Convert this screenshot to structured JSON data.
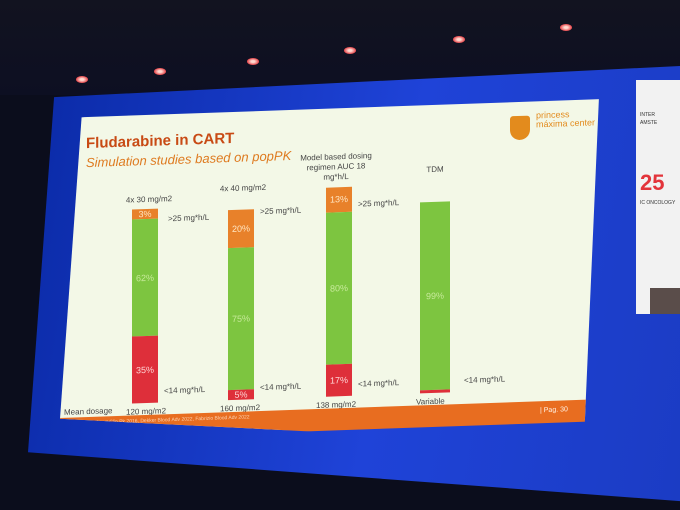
{
  "slide": {
    "title": "Fludarabine in CART",
    "subtitle": "Simulation studies based on popPK",
    "brand": "princess máxima center",
    "mean_dosage_label": "Mean dosage",
    "footer_refs": "Langenhorst Clin Pk 2016, Dekker Blood Adv 2022, Fabrizio Blood Adv 2022",
    "page": "| Pag. 30"
  },
  "side_panel": {
    "number": "25",
    "line1": "INTER",
    "line2": "AMSTE",
    "line3": "IC ONCOLOGY"
  },
  "chart_data": {
    "type": "bar",
    "stacked": true,
    "categories": [
      "4x 30 mg/m2",
      "4x 40 mg/m2",
      "Model based dosing regimen AUC 18 mg*h/L",
      "TDM"
    ],
    "mean_dosage": [
      "120 mg/m2",
      "160 mg/m2",
      "138 mg/m2",
      "Variable"
    ],
    "series": [
      {
        "name": ">25 mg*h/L",
        "color": "#e8812a",
        "values": [
          3,
          20,
          13,
          null
        ]
      },
      {
        "name": "",
        "color": "#7dc540",
        "values": [
          62,
          75,
          80,
          99
        ]
      },
      {
        "name": "<14 mg*h/L",
        "color": "#de2f3a",
        "values": [
          35,
          5,
          17,
          null
        ]
      }
    ],
    "segment_labels": {
      "c0": [
        "3%",
        "62%",
        "35%"
      ],
      "c1": [
        "20%",
        "75%",
        "5%"
      ],
      "c2": [
        "13%",
        "80%",
        "17%"
      ],
      "c3": [
        "99%"
      ]
    },
    "right_labels": {
      "high": ">25 mg*h/L",
      "low": "<14 mg*h/L"
    }
  }
}
